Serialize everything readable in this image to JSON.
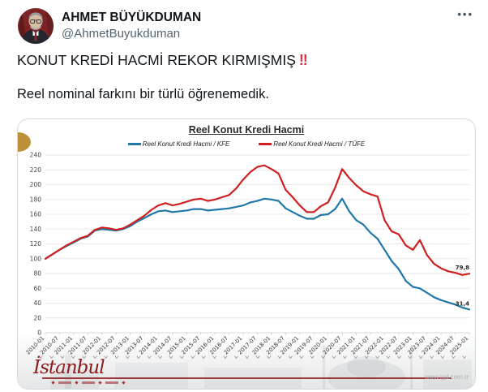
{
  "tweet": {
    "display_name": "AHMET BÜYÜKDUMAN",
    "handle": "@AhmetBuyukduman",
    "line1": "KONUT KREDİ HACMİ REKOR KIRMIŞMIŞ",
    "line1_emoji": "‼",
    "line2": "Reel nominal farkını bir türlü öğrenemedik.",
    "more_icon": "•••"
  },
  "chart_data": {
    "type": "line",
    "title": "Reel Konut Kredi Hacmi",
    "ylim": [
      0,
      240
    ],
    "ytick_step": 20,
    "grid": true,
    "legend_position": "top-center",
    "points_per_label": 2,
    "x_labels": [
      "2010-01",
      "2010-07",
      "2011-01",
      "2011-07",
      "2012-01",
      "2012-07",
      "2013-01",
      "2013-07",
      "2014-01",
      "2014-07",
      "2015-01",
      "2015-07",
      "2016-01",
      "2016-07",
      "2017-01",
      "2017-07",
      "2018-01",
      "2018-07",
      "2019-01",
      "2019-07",
      "2020-01",
      "2020-07",
      "2021-01",
      "2021-07",
      "2022-01",
      "2022-07",
      "2023-01",
      "2023-07",
      "2024-01",
      "2024-07",
      "2025-01"
    ],
    "series": [
      {
        "name": "Reel Konut Kredi Hacmi / KFE",
        "color": "#1f78a8",
        "end_label": "31,4",
        "values": [
          100,
          106,
          112,
          117,
          122,
          127,
          130,
          138,
          140,
          139,
          138,
          140,
          144,
          150,
          155,
          160,
          164,
          165,
          163,
          164,
          165,
          167,
          167,
          165,
          166,
          167,
          168,
          170,
          172,
          176,
          178,
          181,
          180,
          178,
          168,
          163,
          158,
          154,
          154,
          159,
          160,
          167,
          181,
          164,
          152,
          146,
          135,
          127,
          112,
          97,
          86,
          70,
          62,
          60,
          54,
          48,
          44,
          41,
          38,
          34,
          31.4
        ]
      },
      {
        "name": "Reel Konut Kredi Hacmi / TÜFE",
        "color": "#cf1f1f",
        "end_label": "79,8",
        "values": [
          100,
          106,
          112,
          118,
          123,
          128,
          131,
          139,
          142,
          141,
          139,
          141,
          146,
          152,
          158,
          166,
          172,
          175,
          172,
          174,
          177,
          180,
          181,
          178,
          180,
          183,
          186,
          195,
          207,
          217,
          224,
          226,
          221,
          215,
          193,
          183,
          172,
          163,
          163,
          171,
          176,
          196,
          221,
          209,
          199,
          191,
          187,
          184,
          152,
          137,
          133,
          118,
          112,
          125,
          105,
          93,
          87,
          83,
          81,
          78,
          79.8
        ]
      }
    ]
  },
  "chart_footer": {
    "brand": "İstanbul",
    "url": "www.igd.com.tr"
  }
}
